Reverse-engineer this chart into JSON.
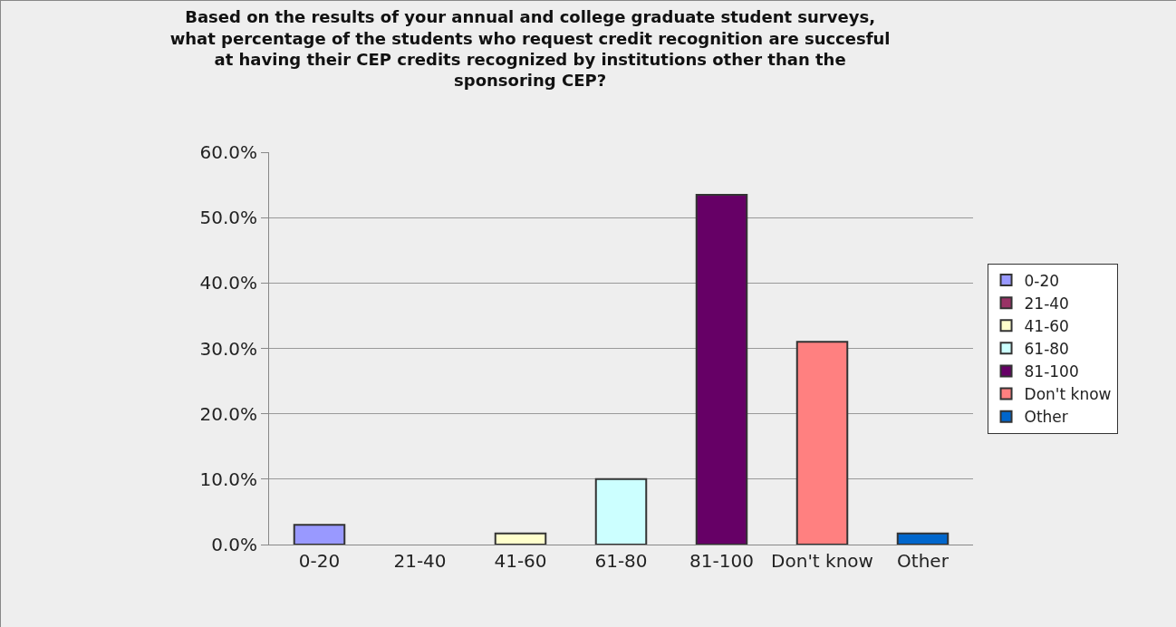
{
  "chart_data": {
    "type": "bar",
    "title": "Based on the results of your annual and college graduate student surveys, what percentage of the students who request credit recognition are succesful at having their CEP credits recognized by institutions other than the sponsoring CEP?",
    "categories": [
      "0-20",
      "21-40",
      "41-60",
      "61-80",
      "81-100",
      "Don't know",
      "Other"
    ],
    "series": [
      {
        "name": "0-20",
        "color": "#9999ff",
        "values": [
          3.0,
          null,
          null,
          null,
          null,
          null,
          null
        ]
      },
      {
        "name": "21-40",
        "color": "#993366",
        "values": [
          null,
          0,
          null,
          null,
          null,
          null,
          null
        ]
      },
      {
        "name": "41-60",
        "color": "#ffffcc",
        "values": [
          null,
          null,
          1.7,
          null,
          null,
          null,
          null
        ]
      },
      {
        "name": "61-80",
        "color": "#ccffff",
        "values": [
          null,
          null,
          null,
          10.0,
          null,
          null,
          null
        ]
      },
      {
        "name": "81-100",
        "color": "#660066",
        "values": [
          null,
          null,
          null,
          null,
          53.5,
          null,
          null
        ]
      },
      {
        "name": "Don't know",
        "color": "#ff8080",
        "values": [
          null,
          null,
          null,
          null,
          null,
          31.0,
          null
        ]
      },
      {
        "name": "Other",
        "color": "#0066cc",
        "values": [
          null,
          null,
          null,
          null,
          null,
          null,
          1.7
        ]
      }
    ],
    "ylim": [
      0,
      60
    ],
    "yticks": [
      {
        "value": 0,
        "label": "0.0%"
      },
      {
        "value": 10,
        "label": "10.0%"
      },
      {
        "value": 20,
        "label": "20.0%"
      },
      {
        "value": 30,
        "label": "30.0%"
      },
      {
        "value": 40,
        "label": "40.0%"
      },
      {
        "value": 50,
        "label": "50.0%"
      },
      {
        "value": 60,
        "label": "60.0%"
      }
    ],
    "grid": "y",
    "legend": "right"
  }
}
